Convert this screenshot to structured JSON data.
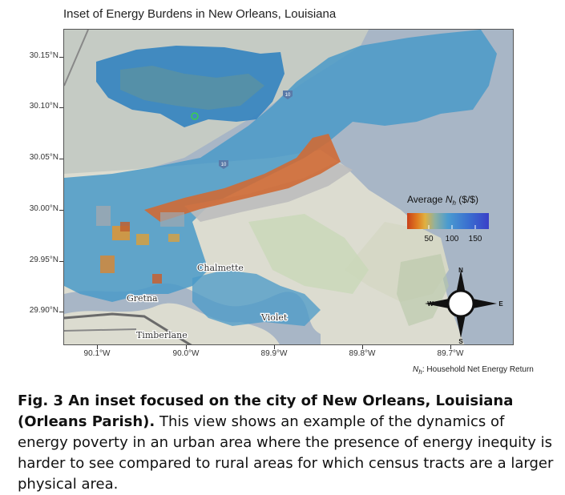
{
  "map": {
    "title": "Inset of Energy Burdens in New Orleans, Louisiana",
    "y_axis_labels": [
      "30.15°N",
      "30.10°N",
      "30.05°N",
      "30.00°N",
      "29.95°N",
      "29.90°N"
    ],
    "x_axis_labels": [
      "90.1°W",
      "90.0°W",
      "89.9°W",
      "89.8°W",
      "89.7°W"
    ],
    "place_labels": {
      "chalmette": "Chalmette",
      "gretna": "Gretna",
      "violet": "Violet",
      "timberlane": "Timberlane"
    },
    "road_shields": {
      "i10_north": "10",
      "i10_east": "10"
    },
    "legend": {
      "title_prefix": "Average ",
      "title_var": "N",
      "title_sub": "h",
      "title_suffix": " ($/$)",
      "ticks": [
        "50",
        "100",
        "150"
      ],
      "gradient": [
        "#c8401a",
        "#e07a20",
        "#e0b040",
        "#8fb0a0",
        "#4a9bd0",
        "#3a6fd0",
        "#3a40c8"
      ]
    },
    "compass": {
      "north": "N",
      "south": "S",
      "east": "E",
      "west": "W"
    },
    "note_var": "N",
    "note_sub": "h",
    "note_text": ": Household Net Energy Return",
    "colors": {
      "water": "#a8b6c6",
      "land": "#dcdcd0",
      "low_value": "#c8602a",
      "high_value": "#4a9ac8"
    }
  },
  "caption": {
    "bold": "Fig. 3 An inset focused on the city of New Orleans, Louisiana (Orleans Parish).",
    "text": " This view shows an example of the dynamics of energy poverty in an urban area where the presence of energy inequity is harder to see compared to rural areas for which census tracts are a larger physical area."
  }
}
